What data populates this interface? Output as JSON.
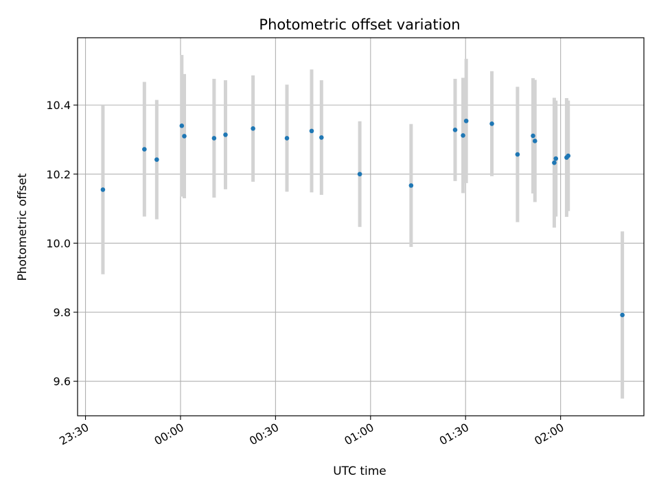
{
  "chart_data": {
    "type": "scatter",
    "title": "Photometric offset variation",
    "xlabel": "UTC time",
    "ylabel": "Photometric offset",
    "x_tick_labels": [
      "23:30",
      "00:00",
      "00:30",
      "01:00",
      "01:30",
      "02:00"
    ],
    "x_tick_minutes": [
      -30,
      0,
      30,
      60,
      90,
      120
    ],
    "y_ticks": [
      9.6,
      9.8,
      10.0,
      10.2,
      10.4
    ],
    "y_tick_labels": [
      "9.6",
      "9.8",
      "10.0",
      "10.2",
      "10.4"
    ],
    "xlim_minutes": [
      -32.5,
      146.3
    ],
    "ylim": [
      9.5,
      10.595
    ],
    "grid": true,
    "colors": {
      "point": "#1f77b4",
      "errorbar": "#d3d3d3",
      "grid": "#b0b0b0"
    },
    "points": [
      {
        "t": -24.5,
        "y": 10.155,
        "err": 0.245
      },
      {
        "t": -11.4,
        "y": 10.272,
        "err": 0.195
      },
      {
        "t": -7.5,
        "y": 10.242,
        "err": 0.173
      },
      {
        "t": 0.4,
        "y": 10.34,
        "err": 0.205
      },
      {
        "t": 1.2,
        "y": 10.31,
        "err": 0.18
      },
      {
        "t": 10.6,
        "y": 10.304,
        "err": 0.172
      },
      {
        "t": 14.2,
        "y": 10.314,
        "err": 0.158
      },
      {
        "t": 22.9,
        "y": 10.332,
        "err": 0.154
      },
      {
        "t": 33.6,
        "y": 10.304,
        "err": 0.155
      },
      {
        "t": 41.4,
        "y": 10.325,
        "err": 0.178
      },
      {
        "t": 44.5,
        "y": 10.306,
        "err": 0.166
      },
      {
        "t": 56.6,
        "y": 10.2,
        "err": 0.153
      },
      {
        "t": 72.8,
        "y": 10.167,
        "err": 0.178
      },
      {
        "t": 86.7,
        "y": 10.328,
        "err": 0.148
      },
      {
        "t": 89.2,
        "y": 10.312,
        "err": 0.167
      },
      {
        "t": 90.2,
        "y": 10.354,
        "err": 0.18
      },
      {
        "t": 98.3,
        "y": 10.346,
        "err": 0.152
      },
      {
        "t": 106.4,
        "y": 10.257,
        "err": 0.196
      },
      {
        "t": 111.3,
        "y": 10.311,
        "err": 0.167
      },
      {
        "t": 111.9,
        "y": 10.296,
        "err": 0.177
      },
      {
        "t": 118.0,
        "y": 10.233,
        "err": 0.188
      },
      {
        "t": 118.5,
        "y": 10.245,
        "err": 0.168
      },
      {
        "t": 121.9,
        "y": 10.248,
        "err": 0.172
      },
      {
        "t": 122.4,
        "y": 10.253,
        "err": 0.16
      },
      {
        "t": 139.5,
        "y": 9.792,
        "err": 0.242
      }
    ]
  }
}
